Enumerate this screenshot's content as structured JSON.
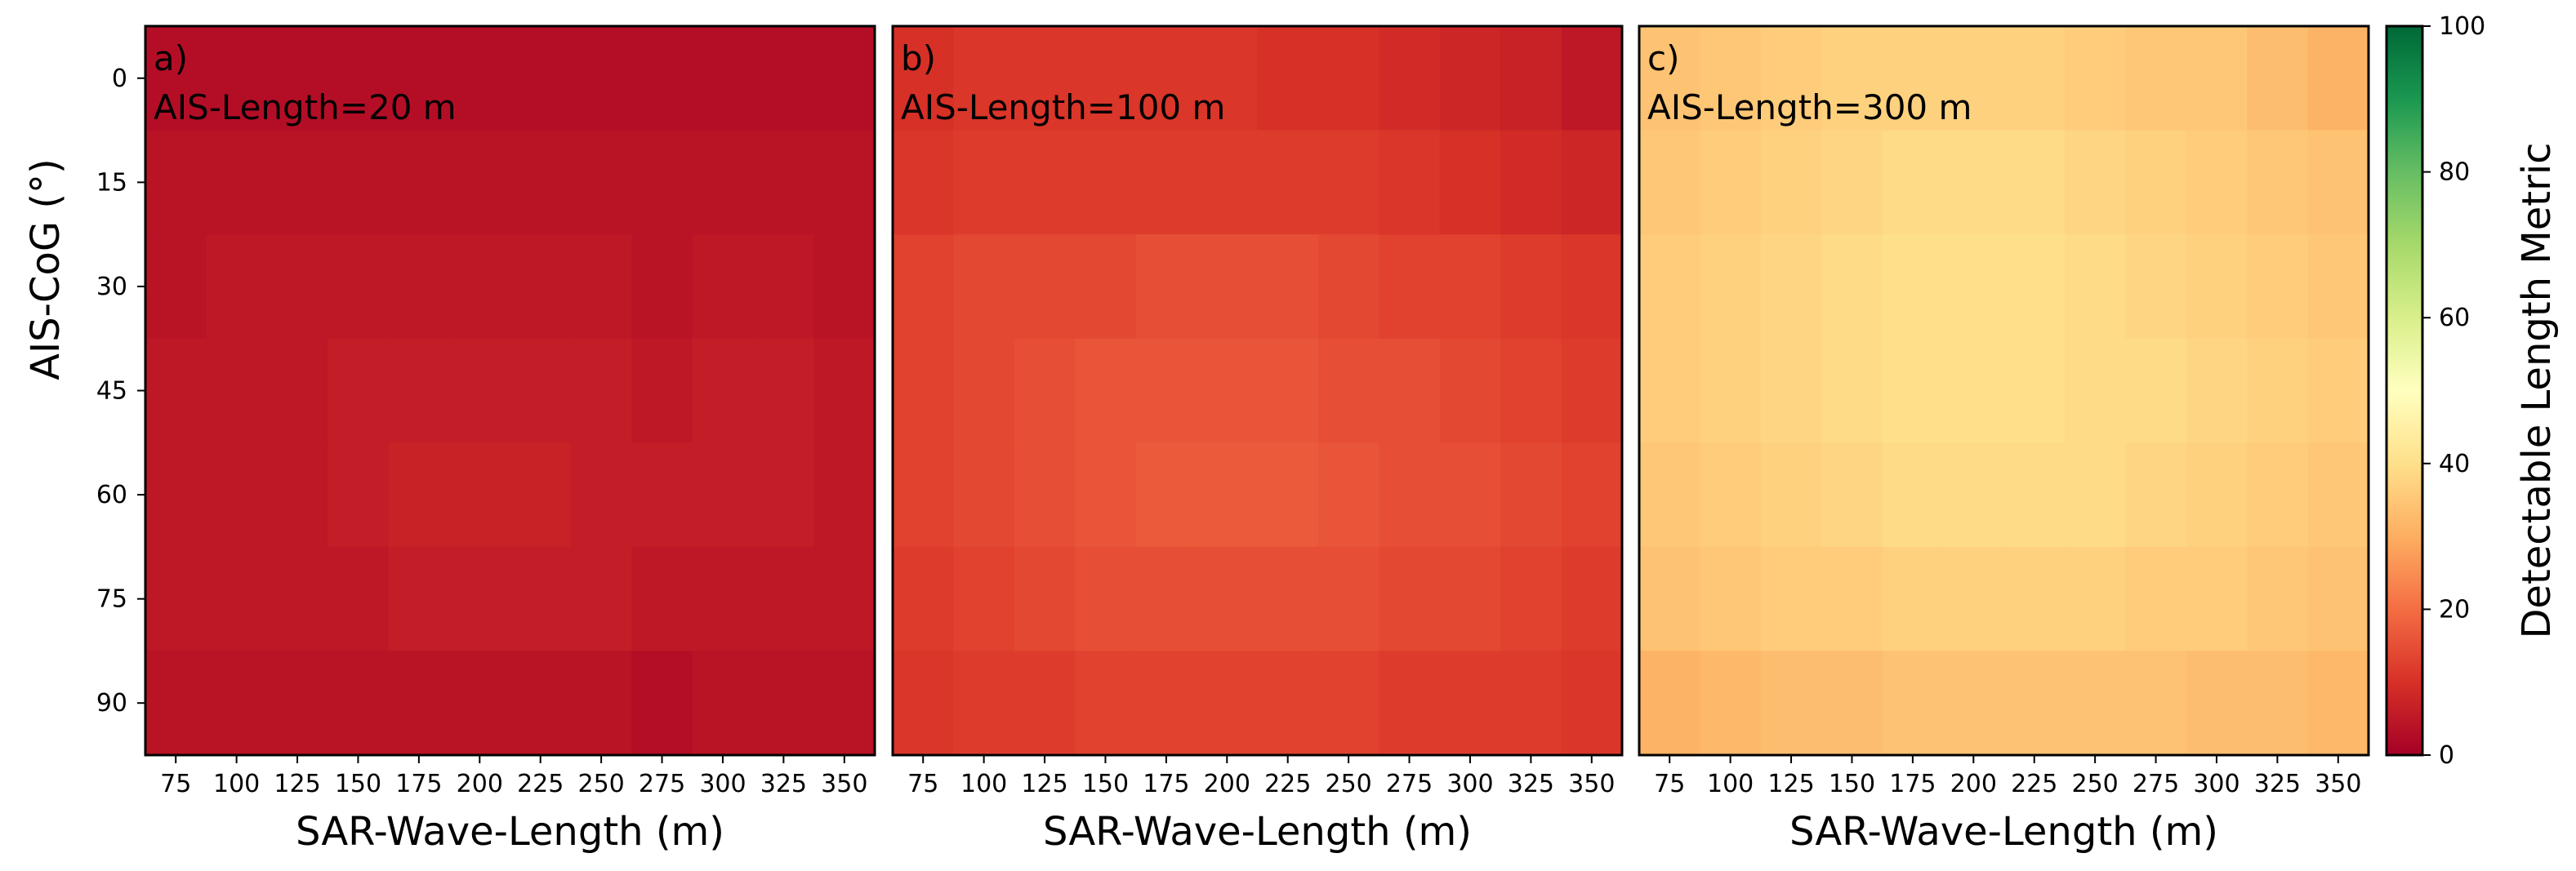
{
  "chart_data": {
    "type": "heatmap",
    "xlabel": "SAR-Wave-Length (m)",
    "ylabel": "AIS-CoG (°)",
    "x": [
      75,
      100,
      125,
      150,
      175,
      200,
      225,
      250,
      275,
      300,
      325,
      350
    ],
    "y": [
      0,
      15,
      30,
      45,
      60,
      75,
      90
    ],
    "x_ticks": [
      75,
      100,
      125,
      150,
      175,
      200,
      225,
      250,
      275,
      300,
      325,
      350
    ],
    "y_ticks": [
      0,
      15,
      30,
      45,
      60,
      75,
      90
    ],
    "colorbar": {
      "label": "Detectable Length Metric",
      "range": [
        0,
        100
      ],
      "ticks": [
        0,
        20,
        40,
        60,
        80,
        100
      ],
      "colormap": "RdYlGn"
    },
    "panels": [
      {
        "label": "a)",
        "title": "AIS-Length=20 m",
        "values": [
          [
            3,
            3,
            3,
            3,
            3,
            3,
            3,
            3,
            3,
            3,
            3,
            3
          ],
          [
            4,
            4,
            4,
            4,
            4,
            4,
            4,
            4,
            4,
            4,
            4,
            4
          ],
          [
            4,
            5,
            5,
            5,
            5,
            5,
            5,
            5,
            4,
            5,
            5,
            4
          ],
          [
            5,
            5,
            5,
            6,
            6,
            6,
            6,
            6,
            5,
            6,
            6,
            5
          ],
          [
            5,
            5,
            5,
            6,
            7,
            7,
            7,
            6,
            6,
            6,
            6,
            5
          ],
          [
            5,
            5,
            5,
            5,
            6,
            6,
            6,
            6,
            5,
            5,
            5,
            5
          ],
          [
            4,
            4,
            4,
            4,
            4,
            4,
            4,
            4,
            3,
            4,
            4,
            4
          ]
        ]
      },
      {
        "label": "b)",
        "title": "AIS-Length=100 m",
        "values": [
          [
            10,
            11,
            11,
            11,
            11,
            11,
            10,
            10,
            9,
            8,
            7,
            5
          ],
          [
            11,
            12,
            12,
            12,
            12,
            12,
            12,
            12,
            11,
            10,
            9,
            8
          ],
          [
            13,
            14,
            14,
            14,
            15,
            15,
            15,
            14,
            13,
            13,
            12,
            11
          ],
          [
            13,
            14,
            15,
            16,
            16,
            16,
            16,
            15,
            15,
            14,
            13,
            12
          ],
          [
            13,
            14,
            15,
            16,
            17,
            17,
            17,
            16,
            15,
            15,
            14,
            13
          ],
          [
            12,
            13,
            14,
            15,
            15,
            15,
            15,
            15,
            14,
            14,
            13,
            12
          ],
          [
            11,
            12,
            12,
            13,
            13,
            13,
            13,
            13,
            12,
            12,
            12,
            11
          ]
        ]
      },
      {
        "label": "c)",
        "title": "AIS-Length=300 m",
        "values": [
          [
            34,
            35,
            36,
            37,
            37,
            37,
            37,
            36,
            35,
            35,
            33,
            31
          ],
          [
            35,
            36,
            37,
            38,
            39,
            39,
            39,
            38,
            37,
            36,
            35,
            34
          ],
          [
            36,
            37,
            38,
            39,
            40,
            40,
            40,
            39,
            38,
            37,
            36,
            35
          ],
          [
            36,
            37,
            38,
            39,
            40,
            40,
            40,
            39,
            39,
            38,
            37,
            36
          ],
          [
            35,
            36,
            37,
            38,
            39,
            39,
            39,
            39,
            38,
            37,
            36,
            35
          ],
          [
            34,
            35,
            36,
            36,
            37,
            37,
            37,
            37,
            36,
            36,
            35,
            34
          ],
          [
            31,
            32,
            33,
            33,
            34,
            34,
            34,
            34,
            34,
            33,
            33,
            32
          ]
        ]
      }
    ]
  }
}
